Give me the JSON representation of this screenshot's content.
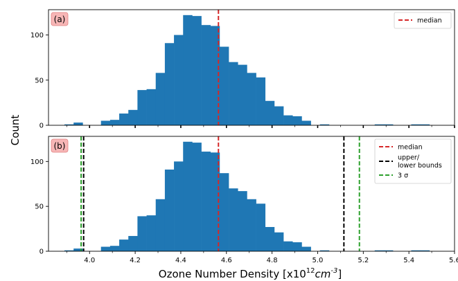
{
  "ylabel": "Count",
  "xlabel": "Ozone Number Density [x10",
  "xlabel_sup": "12",
  "xlabel_unit": "cm",
  "xlabel_unit_sup": "-3",
  "xlabel_close": "]",
  "colors": {
    "bars": "#1f77b4",
    "median": "#d62728",
    "bounds": "#000000",
    "sigma": "#2ca02c",
    "panel_label_bg": "#f7b6b6",
    "panel_label_border": "#e08080"
  },
  "chart_data": [
    {
      "type": "bar",
      "panel_label": "(a)",
      "xlim": [
        3.82,
        5.6
      ],
      "ylim": [
        0,
        128
      ],
      "x_ticks": [],
      "y_ticks": [
        0,
        50,
        100
      ],
      "bin_width": 0.04,
      "bin_starts": [
        3.89,
        3.93,
        3.97,
        4.01,
        4.05,
        4.09,
        4.13,
        4.17,
        4.21,
        4.25,
        4.29,
        4.33,
        4.37,
        4.41,
        4.45,
        4.49,
        4.53,
        4.57,
        4.61,
        4.65,
        4.69,
        4.73,
        4.77,
        4.81,
        4.85,
        4.89,
        4.93,
        4.97,
        5.01,
        5.05,
        5.09,
        5.13,
        5.17,
        5.21,
        5.25,
        5.29,
        5.33,
        5.37,
        5.41,
        5.45,
        5.49
      ],
      "values": [
        1,
        3,
        0,
        0,
        5,
        6,
        13,
        17,
        39,
        40,
        58,
        91,
        100,
        122,
        121,
        111,
        110,
        87,
        70,
        67,
        58,
        53,
        27,
        21,
        11,
        10,
        5,
        0,
        1,
        0,
        0,
        0,
        0,
        0,
        1,
        1,
        0,
        0,
        1,
        1,
        0
      ],
      "vlines": [
        {
          "name": "median",
          "x": 4.565,
          "color": "#d62728"
        }
      ],
      "legend": {
        "position": "top-right",
        "entries": [
          {
            "label": "median",
            "color": "#d62728"
          }
        ]
      }
    },
    {
      "type": "bar",
      "panel_label": "(b)",
      "xlim": [
        3.82,
        5.6
      ],
      "ylim": [
        0,
        128
      ],
      "x_ticks": [
        "4.0",
        "4.2",
        "4.4",
        "4.6",
        "4.8",
        "5.0",
        "5.2",
        "5.4",
        "5.6"
      ],
      "y_ticks": [
        0,
        50,
        100
      ],
      "bin_width": 0.04,
      "bin_starts": [
        3.89,
        3.93,
        3.97,
        4.01,
        4.05,
        4.09,
        4.13,
        4.17,
        4.21,
        4.25,
        4.29,
        4.33,
        4.37,
        4.41,
        4.45,
        4.49,
        4.53,
        4.57,
        4.61,
        4.65,
        4.69,
        4.73,
        4.77,
        4.81,
        4.85,
        4.89,
        4.93,
        4.97,
        5.01,
        5.05,
        5.09,
        5.13,
        5.17,
        5.21,
        5.25,
        5.29,
        5.33,
        5.37,
        5.41,
        5.45,
        5.49
      ],
      "values": [
        1,
        3,
        0,
        0,
        5,
        6,
        13,
        17,
        39,
        40,
        58,
        91,
        100,
        122,
        121,
        111,
        110,
        87,
        70,
        67,
        58,
        53,
        27,
        21,
        11,
        10,
        5,
        0,
        1,
        0,
        0,
        0,
        0,
        0,
        1,
        1,
        0,
        0,
        1,
        1,
        0
      ],
      "vlines": [
        {
          "name": "median",
          "x": 4.565,
          "color": "#d62728"
        },
        {
          "name": "lower-bound",
          "x": 3.974,
          "color": "#000000"
        },
        {
          "name": "upper-bound",
          "x": 5.115,
          "color": "#000000"
        },
        {
          "name": "sigma-lower",
          "x": 3.963,
          "color": "#2ca02c"
        },
        {
          "name": "sigma-upper",
          "x": 5.183,
          "color": "#2ca02c"
        }
      ],
      "legend": {
        "position": "top-right",
        "entries": [
          {
            "label": "median",
            "color": "#d62728"
          },
          {
            "label": "upper/",
            "label2": "lower bounds",
            "color": "#000000"
          },
          {
            "label": "3 σ",
            "color": "#2ca02c"
          }
        ]
      }
    }
  ]
}
